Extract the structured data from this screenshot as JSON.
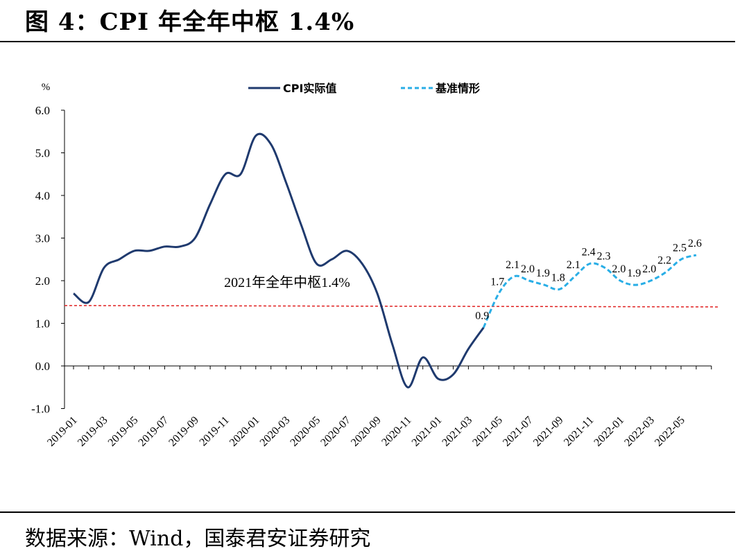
{
  "title": "图 4：CPI 年全年中枢 1.4%",
  "source": "数据来源：Wind，国泰君安证券研究",
  "chart_data": {
    "type": "line",
    "ylabel": "%",
    "ylim": [
      -1.0,
      6.0
    ],
    "yticks": [
      "6.0",
      "5.0",
      "4.0",
      "3.0",
      "2.0",
      "1.0",
      "0.0",
      "-1.0"
    ],
    "x_tick_labels": [
      "2019-01",
      "2019-03",
      "2019-05",
      "2019-07",
      "2019-09",
      "2019-11",
      "2020-01",
      "2020-03",
      "2020-05",
      "2020-07",
      "2020-09",
      "2020-11",
      "2021-01",
      "2021-03",
      "2021-05",
      "2021-07",
      "2021-09",
      "2021-11",
      "2022-01",
      "2022-03",
      "2022-05"
    ],
    "legend_position": "top",
    "series": [
      {
        "name": "CPI实际值",
        "color": "#1f3a6e",
        "style": "solid",
        "x": [
          "2019-01",
          "2019-02",
          "2019-03",
          "2019-04",
          "2019-05",
          "2019-06",
          "2019-07",
          "2019-08",
          "2019-09",
          "2019-10",
          "2019-11",
          "2019-12",
          "2020-01",
          "2020-02",
          "2020-03",
          "2020-04",
          "2020-05",
          "2020-06",
          "2020-07",
          "2020-08",
          "2020-09",
          "2020-10",
          "2020-11",
          "2020-12",
          "2021-01",
          "2021-02",
          "2021-03",
          "2021-04"
        ],
        "values": [
          1.7,
          1.5,
          2.3,
          2.5,
          2.7,
          2.7,
          2.8,
          2.8,
          3.0,
          3.8,
          4.5,
          4.5,
          5.4,
          5.2,
          4.3,
          3.3,
          2.4,
          2.5,
          2.7,
          2.4,
          1.7,
          0.5,
          -0.5,
          0.2,
          -0.3,
          -0.2,
          0.4,
          0.9
        ]
      },
      {
        "name": "基准情形",
        "color": "#29aee6",
        "style": "dashed",
        "x": [
          "2021-04",
          "2021-05",
          "2021-06",
          "2021-07",
          "2021-08",
          "2021-09",
          "2021-10",
          "2021-11",
          "2021-12",
          "2022-01",
          "2022-02",
          "2022-03",
          "2022-04",
          "2022-05",
          "2022-06"
        ],
        "values": [
          0.9,
          1.7,
          2.1,
          2.0,
          1.9,
          1.8,
          2.1,
          2.4,
          2.3,
          2.0,
          1.9,
          2.0,
          2.2,
          2.5,
          2.6
        ],
        "labels": [
          "0.9",
          "1.7",
          "2.1",
          "2.0",
          "1.9",
          "1.8",
          "2.1",
          "2.4",
          "2.3",
          "2.0",
          "1.9",
          "2.0",
          "2.2",
          "2.5",
          "2.6"
        ]
      }
    ],
    "reference_line": {
      "value": 1.45,
      "color": "#e02020",
      "style": "dashed",
      "label": "2021年全年中枢1.4%"
    }
  }
}
